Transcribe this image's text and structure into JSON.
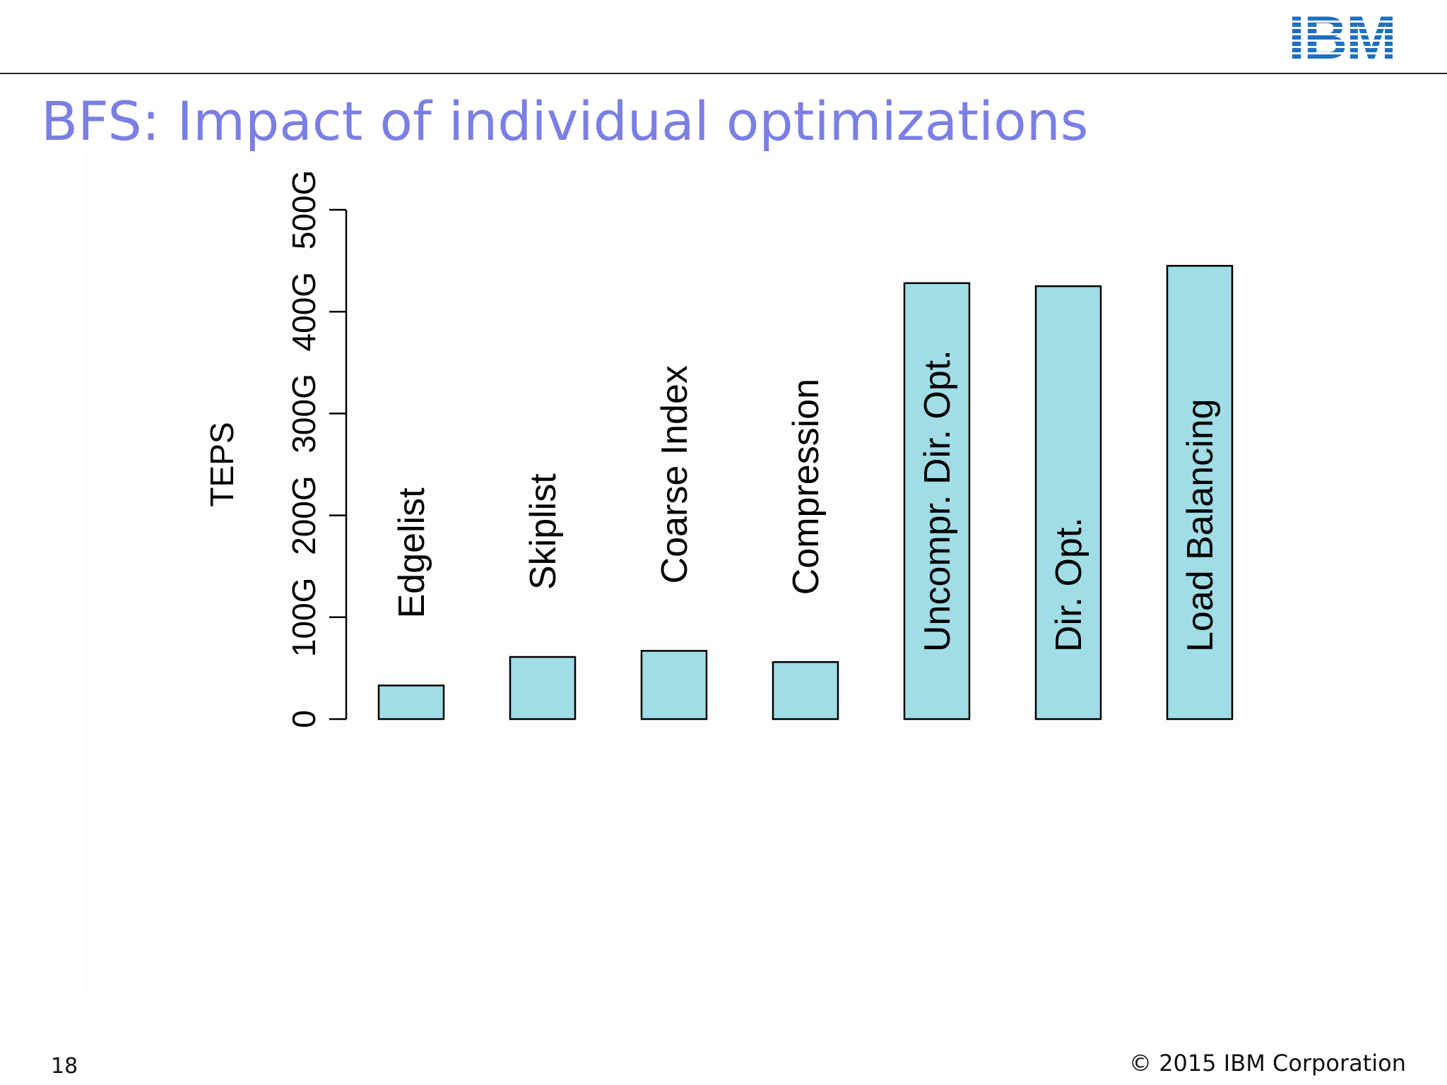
{
  "slide": {
    "title": "BFS: Impact of individual optimizations",
    "page_number": "18",
    "copyright_symbol": "©",
    "copyright_text": "2015 IBM Corporation",
    "logo_text": "IBM",
    "title_color": "#7b7fe3",
    "logo_color": "#1f70c1"
  },
  "chart_data": {
    "type": "bar",
    "title": "",
    "xlabel": "",
    "ylabel": "TEPS",
    "ylim": [
      0,
      500
    ],
    "y_unit": "G",
    "y_ticks": [
      {
        "value": 0,
        "label": "0"
      },
      {
        "value": 100,
        "label": "100G"
      },
      {
        "value": 200,
        "label": "200G"
      },
      {
        "value": 300,
        "label": "300G"
      },
      {
        "value": 400,
        "label": "400G"
      },
      {
        "value": 500,
        "label": "500G"
      }
    ],
    "categories": [
      "Edgelist",
      "Skiplist",
      "Coarse Index",
      "Compression",
      "Uncompr. Dir. Opt.",
      "Dir. Opt.",
      "Load Balancing"
    ],
    "values": [
      33,
      61,
      67,
      56,
      428,
      425,
      445
    ],
    "bar_color": "#a0dde6",
    "grid": false,
    "legend": "none"
  }
}
